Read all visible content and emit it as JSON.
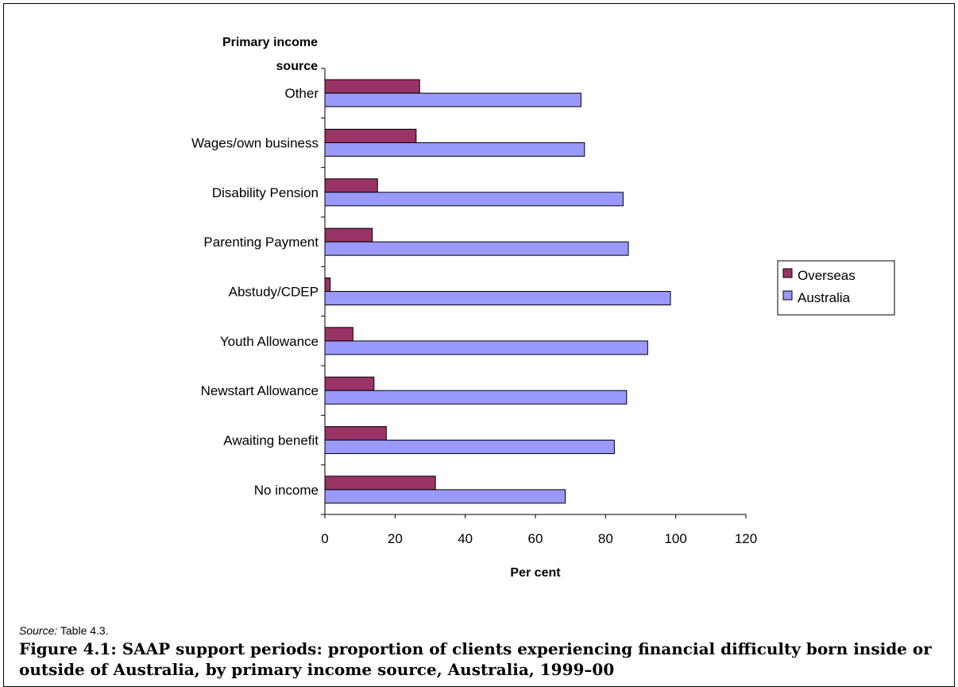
{
  "chart_data": {
    "type": "bar",
    "orientation": "horizontal",
    "ylabel": "Primary income source",
    "xlabel": "Per cent",
    "xlim": [
      0,
      120
    ],
    "xticks": [
      0,
      20,
      40,
      60,
      80,
      100,
      120
    ],
    "grid": false,
    "legend_position": "right",
    "categories": [
      "Other",
      "Wages/own business",
      "Disability Pension",
      "Parenting Payment",
      "Abstudy/CDEP",
      "Youth Allowance",
      "Newstart Allowance",
      "Awaiting benefit",
      "No income"
    ],
    "series": [
      {
        "name": "Overseas",
        "color": "#993366",
        "values": [
          27,
          26,
          15,
          13.5,
          1.5,
          8,
          14,
          17.5,
          31.5
        ]
      },
      {
        "name": "Australia",
        "color": "#9999ff",
        "values": [
          73,
          74,
          85,
          86.5,
          98.5,
          92,
          86,
          82.5,
          68.5
        ]
      }
    ]
  },
  "source": {
    "label": "Source:",
    "text": "Table 4.3."
  },
  "caption": "Figure 4.1: SAAP support periods: proportion of clients experiencing financial difficulty born inside or outside of Australia, by primary income source, Australia, 1999–00"
}
